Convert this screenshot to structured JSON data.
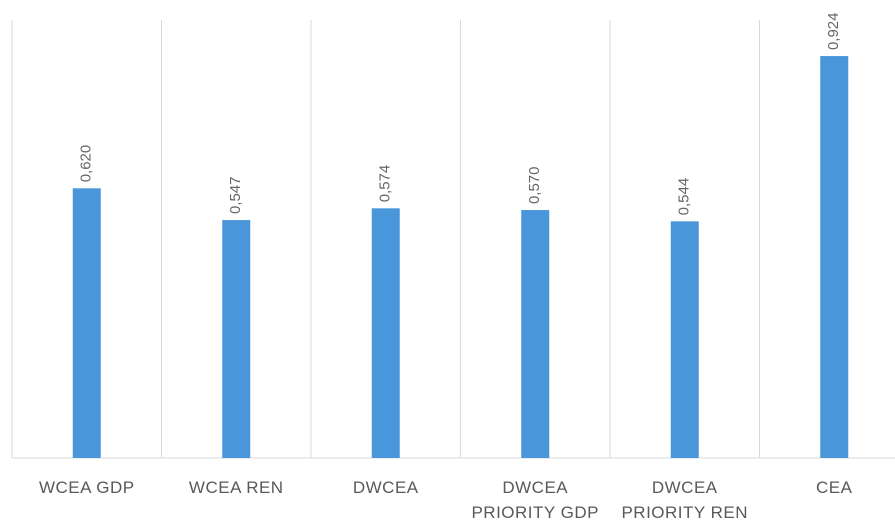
{
  "chart_data": {
    "type": "bar",
    "categories": [
      "WCEA GDP",
      "WCEA REN",
      "DWCEA",
      "DWCEA PRIORITY GDP",
      "DWCEA PRIORITY REN",
      "CEA"
    ],
    "values": [
      0.62,
      0.547,
      0.574,
      0.57,
      0.544,
      0.924
    ],
    "value_labels": [
      "0,620",
      "0,547",
      "0,574",
      "0,570",
      "0,544",
      "0,924"
    ],
    "color": "#4a96db",
    "ylim": [
      0,
      1
    ]
  }
}
